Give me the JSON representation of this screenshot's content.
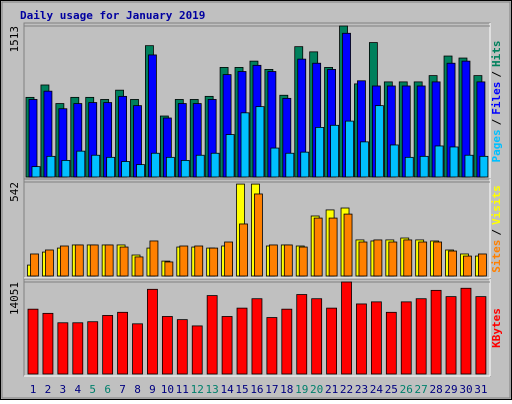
{
  "chart_data": [
    {
      "type": "bar",
      "title": "Daily usage for January 2019",
      "categories": [
        "1",
        "2",
        "3",
        "4",
        "5",
        "6",
        "7",
        "8",
        "9",
        "10",
        "11",
        "12",
        "13",
        "14",
        "15",
        "16",
        "17",
        "18",
        "19",
        "20",
        "21",
        "22",
        "23",
        "24",
        "25",
        "26",
        "27",
        "28",
        "29",
        "30",
        "31"
      ],
      "series": [
        {
          "name": "Hits",
          "color": "#00805c",
          "values": [
            798,
            922,
            736,
            798,
            798,
            777,
            870,
            777,
            1316,
            611,
            777,
            777,
            808,
            1098,
            1098,
            1161,
            1078,
            819,
            1306,
            1254,
            1098,
            1513,
            933,
            1347,
            953,
            953,
            953,
            1016,
            1212,
            1192,
            1016
          ]
        },
        {
          "name": "Files",
          "color": "#0000ff",
          "values": [
            777,
            860,
            684,
            736,
            746,
            746,
            808,
            715,
            1223,
            591,
            736,
            736,
            777,
            1026,
            1057,
            1119,
            1057,
            788,
            1181,
            1140,
            1078,
            1440,
            964,
            912,
            912,
            912,
            912,
            953,
            1140,
            1161,
            953
          ]
        },
        {
          "name": "Pages",
          "color": "#00c0ff",
          "values": [
            104,
            207,
            166,
            259,
            218,
            197,
            155,
            124,
            238,
            197,
            166,
            218,
            238,
            425,
            643,
            705,
            290,
            238,
            249,
            497,
            518,
            560,
            352,
            715,
            321,
            197,
            207,
            311,
            301,
            218,
            207
          ]
        }
      ],
      "separator": "/",
      "ylim": [
        0,
        1513
      ],
      "yticks": [
        1513
      ]
    },
    {
      "type": "bar",
      "categories": [
        "1",
        "2",
        "3",
        "4",
        "5",
        "6",
        "7",
        "8",
        "9",
        "10",
        "11",
        "12",
        "13",
        "14",
        "15",
        "16",
        "17",
        "18",
        "19",
        "20",
        "21",
        "22",
        "23",
        "24",
        "25",
        "26",
        "27",
        "28",
        "29",
        "30",
        "31"
      ],
      "series": [
        {
          "name": "Visits",
          "color": "#ffff00",
          "values": [
            63,
            138,
            161,
            179,
            179,
            179,
            179,
            121,
            161,
            86,
            167,
            167,
            161,
            173,
            530,
            530,
            173,
            179,
            173,
            346,
            381,
            392,
            208,
            202,
            208,
            219,
            208,
            202,
            150,
            127,
            115
          ]
        },
        {
          "name": "Sites",
          "color": "#ff8000",
          "values": [
            127,
            150,
            173,
            179,
            179,
            179,
            167,
            110,
            202,
            81,
            173,
            173,
            161,
            196,
            300,
            473,
            179,
            179,
            167,
            334,
            334,
            357,
            196,
            208,
            196,
            208,
            196,
            196,
            144,
            115,
            127
          ]
        }
      ],
      "separator": "/",
      "ylim": [
        0,
        542
      ],
      "yticks": [
        542
      ]
    },
    {
      "type": "bar",
      "categories": [
        "1",
        "2",
        "3",
        "4",
        "5",
        "6",
        "7",
        "8",
        "9",
        "10",
        "11",
        "12",
        "13",
        "14",
        "15",
        "16",
        "17",
        "18",
        "19",
        "20",
        "21",
        "22",
        "23",
        "24",
        "25",
        "26",
        "27",
        "28",
        "29",
        "30",
        "31"
      ],
      "category_colors": [
        "#000080",
        "#000080",
        "#000080",
        "#000080",
        "#00806c",
        "#00806c",
        "#000080",
        "#000080",
        "#000080",
        "#000080",
        "#000080",
        "#00806c",
        "#00806c",
        "#000080",
        "#000080",
        "#000080",
        "#000080",
        "#000080",
        "#00806c",
        "#00806c",
        "#000080",
        "#000080",
        "#000080",
        "#000080",
        "#000080",
        "#00806c",
        "#00806c",
        "#000080",
        "#000080",
        "#000080",
        "#000080"
      ],
      "series": [
        {
          "name": "KBytes",
          "color": "#ff0000",
          "values": [
            9901,
            9263,
            7825,
            7825,
            7985,
            8943,
            9422,
            7666,
            12935,
            8784,
            8304,
            7346,
            11977,
            8784,
            10061,
            11498,
            8624,
            9901,
            12137,
            11498,
            10061,
            14051,
            10700,
            11019,
            9422,
            11019,
            11498,
            12776,
            11818,
            13095,
            11818
          ]
        }
      ],
      "ylim": [
        0,
        14051
      ],
      "yticks": [
        14051
      ]
    }
  ]
}
